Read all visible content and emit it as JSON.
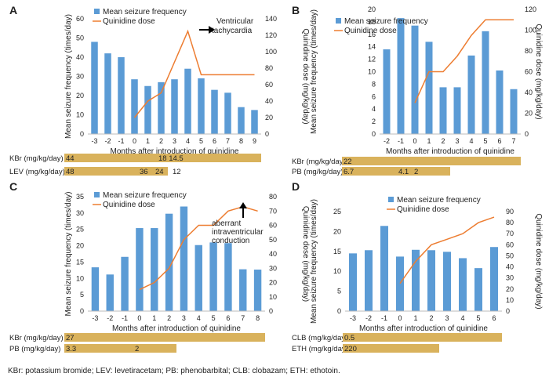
{
  "footnote": "KBr: potassium bromide; LEV: levetiracetam; PB: phenobarbital; CLB: clobazam; ETH: ethotoin.",
  "colors": {
    "bar": "#5b9bd5",
    "line": "#ed7d31",
    "drug_bar": "#d9b25c"
  },
  "legend": {
    "bars": "Mean seizure frequency",
    "line": "Quinidine dose"
  },
  "chart_data": [
    {
      "panel": "A",
      "type": "bar",
      "x": [
        -3,
        -2,
        -1,
        0,
        1,
        2,
        3,
        4,
        5,
        6,
        7,
        8,
        9
      ],
      "values": [
        48,
        42,
        40,
        28.5,
        25,
        27,
        28.5,
        34,
        29,
        23,
        21.5,
        14,
        12.5
      ],
      "line_x": [
        0,
        1,
        2,
        4,
        5,
        9
      ],
      "line_values": [
        20,
        40,
        50,
        125,
        72,
        72
      ],
      "xlabel": "Months after introduction of quinidine",
      "ylabel": "Mean seizure frequency (times/day)",
      "y2label": "Quinidine dose (mg/kg/day)",
      "ylim": [
        0,
        60
      ],
      "yticks": [
        0,
        10,
        20,
        30,
        40,
        50,
        60
      ],
      "y2lim": [
        0,
        140
      ],
      "y2ticks": [
        0,
        20,
        40,
        60,
        80,
        100,
        120,
        140
      ],
      "annotation": [
        "Ventricular",
        "tachycardia"
      ],
      "drugs": [
        {
          "name": "KBr (mg/kg/day)",
          "labels": [
            "44",
            "18 14.5"
          ],
          "bar_end": 9
        },
        {
          "name": "LEV (mg/kg/day)",
          "labels": [
            "48",
            "36",
            "24",
            "12"
          ],
          "bar_end": 2
        }
      ]
    },
    {
      "panel": "B",
      "type": "bar",
      "x": [
        -2,
        -1,
        0,
        1,
        2,
        3,
        4,
        5,
        6,
        7
      ],
      "values": [
        13.6,
        18.6,
        17.4,
        14.8,
        7.5,
        7.5,
        12.6,
        16.5,
        10.2,
        7.2
      ],
      "line_x": [
        0,
        1,
        2,
        3,
        4,
        5,
        7
      ],
      "line_values": [
        30,
        60,
        60,
        75,
        95,
        110,
        110
      ],
      "xlabel": "Months after introduction of quinidine",
      "ylabel": "Mean seizure frequency (times/day)",
      "y2label": "Quinidine dose (mg/kg/day)",
      "ylim": [
        0,
        20
      ],
      "yticks": [
        0,
        2,
        4,
        6,
        8,
        10,
        12,
        14,
        16,
        18,
        20
      ],
      "y2lim": [
        0,
        120
      ],
      "y2ticks": [
        0,
        20,
        40,
        60,
        80,
        100,
        120
      ],
      "drugs": [
        {
          "name": "KBr (mg/kg/day)",
          "labels": [
            "22"
          ],
          "bar_end": 7
        },
        {
          "name": "PB (mg/kg/day)",
          "labels": [
            "6.7",
            "4.1",
            "2"
          ],
          "bar_end": 2
        }
      ]
    },
    {
      "panel": "C",
      "type": "bar",
      "x": [
        -3,
        -2,
        -1,
        0,
        1,
        2,
        3,
        4,
        5,
        6,
        7,
        8
      ],
      "values": [
        13.4,
        11.2,
        16.6,
        25.4,
        25.4,
        29.8,
        32,
        20.2,
        21,
        20.8,
        12.8,
        12.7
      ],
      "line_x": [
        0,
        1,
        2,
        3,
        4,
        5,
        6,
        7,
        8
      ],
      "line_values": [
        15,
        20,
        30,
        50,
        60,
        60,
        70,
        73,
        70
      ],
      "xlabel": "Months after introduction of quinidine",
      "ylabel": "Mean seizure frequency (times/day)",
      "y2label": "Quinidine dose (mg/kg/day)",
      "ylim": [
        0,
        35
      ],
      "yticks": [
        0,
        5,
        10,
        15,
        20,
        25,
        30,
        35
      ],
      "y2lim": [
        0,
        80
      ],
      "y2ticks": [
        0,
        10,
        20,
        30,
        40,
        50,
        60,
        70,
        80
      ],
      "annotation": [
        "aberrant",
        "intraventricular",
        "conduction"
      ],
      "drugs": [
        {
          "name": "KBr (mg/kg/day)",
          "labels": [
            "27"
          ],
          "bar_end": 8
        },
        {
          "name": "PB (mg/kg/day)",
          "labels": [
            "3.3",
            "2"
          ],
          "bar_end": 2
        }
      ]
    },
    {
      "panel": "D",
      "type": "bar",
      "x": [
        -3,
        -2,
        -1,
        0,
        1,
        2,
        3,
        4,
        5,
        6
      ],
      "values": [
        14.5,
        15.3,
        21.4,
        13.7,
        15.4,
        15.3,
        14.9,
        13.3,
        10.8,
        16.1
      ],
      "line_x": [
        0,
        1,
        2,
        3,
        4,
        5,
        6
      ],
      "line_values": [
        25,
        45,
        60,
        65,
        70,
        80,
        85
      ],
      "xlabel": "Months after introduction of quinidine",
      "ylabel": "Mean seizure frequency (times/day)",
      "y2label": "Quinidine dose (mg/kg/day)",
      "ylim": [
        0,
        25
      ],
      "yticks": [
        0,
        5,
        10,
        15,
        20,
        25
      ],
      "y2lim": [
        0,
        90
      ],
      "y2ticks": [
        0,
        10,
        20,
        30,
        40,
        50,
        60,
        70,
        80,
        90
      ],
      "drugs": [
        {
          "name": "CLB (mg/kg/day)",
          "labels": [
            "0.5"
          ],
          "bar_end": 6
        },
        {
          "name": "ETH (mg/kg/day)",
          "labels": [
            "220"
          ],
          "bar_end": 2
        }
      ]
    }
  ]
}
